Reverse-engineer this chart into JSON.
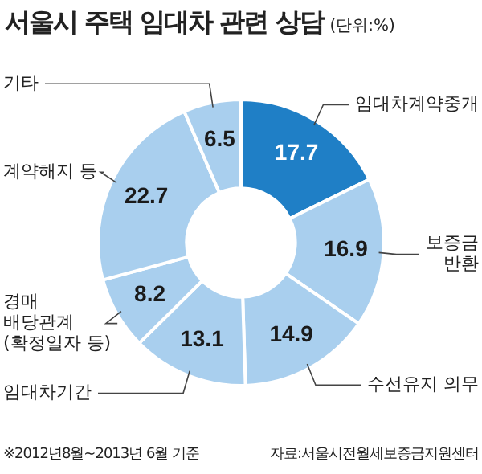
{
  "chart_data": {
    "type": "donut",
    "title": "서울시 주택 임대차 관련 상담",
    "subtitle": "(단위:%)",
    "categories": [
      "임대차계약중개",
      "보증금 반환",
      "수선유지 의무",
      "임대차기간",
      "경매 배당관계 (확정일자 등)",
      "계약해지 등",
      "기타"
    ],
    "values": [
      17.7,
      16.9,
      14.9,
      13.1,
      8.2,
      22.7,
      6.5
    ],
    "colors": [
      "#1f7fc6",
      "#a9cfee",
      "#a9cfee",
      "#a9cfee",
      "#a9cfee",
      "#a9cfee",
      "#a9cfee"
    ],
    "data_labels": true,
    "legend": false,
    "annotations": [
      "※2012년8월~2013년 6월 기준",
      "자료:서울시전월세보증금지원센터"
    ]
  }
}
